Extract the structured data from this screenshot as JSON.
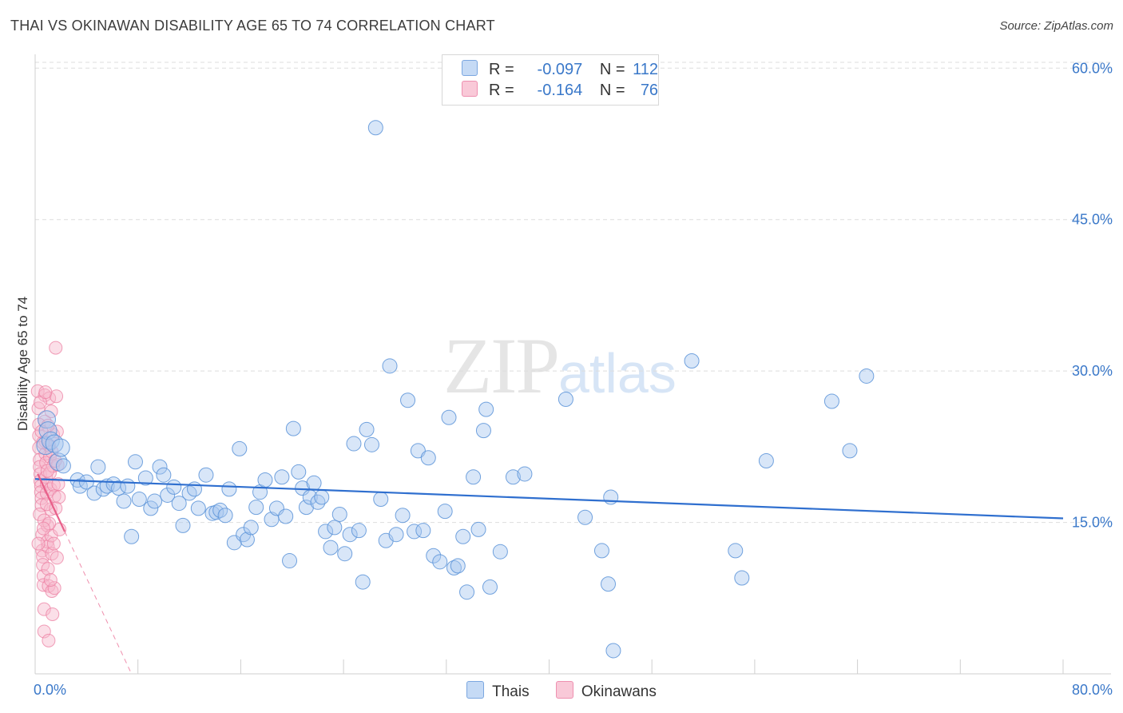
{
  "title": "THAI VS OKINAWAN DISABILITY AGE 65 TO 74 CORRELATION CHART",
  "source": "Source: ZipAtlas.com",
  "watermark": {
    "zip": "ZIP",
    "atlas": "atlas"
  },
  "legend": {
    "thais": {
      "r_label": "R =",
      "r_value": "-0.097",
      "n_label": "N =",
      "n_value": "112"
    },
    "okinawans": {
      "r_label": "R =",
      "r_value": "-0.164",
      "n_label": "N =",
      "n_value": "76"
    }
  },
  "bottom_legend": {
    "thais": "Thais",
    "okinawans": "Okinawans"
  },
  "colors": {
    "thais_fill": "#a9c8f0",
    "thais_stroke": "#5b93d8",
    "thais_line": "#2f6fcf",
    "okinawans_fill": "#f7b7cc",
    "okinawans_stroke": "#ec7fa2",
    "okinawans_line": "#e8608a",
    "tick": "#3a78c9",
    "grid": "#dddddd"
  },
  "chart_data": {
    "type": "scatter",
    "title": "THAI VS OKINAWAN DISABILITY AGE 65 TO 74 CORRELATION CHART",
    "xlabel": "",
    "ylabel": "Disability Age 65 to 74",
    "xlim": [
      0,
      80
    ],
    "ylim": [
      0,
      62
    ],
    "x_tick_labels": [
      "0.0%",
      "80.0%"
    ],
    "y_ticks": [
      15,
      30,
      45,
      60
    ],
    "y_tick_labels": [
      "15.0%",
      "30.0%",
      "45.0%",
      "60.0%"
    ],
    "grid": true,
    "series": [
      {
        "name": "Thais",
        "trendline": {
          "x": [
            0,
            80
          ],
          "y": [
            19.3,
            15.4
          ]
        },
        "points": [
          [
            0.8,
            22.6
          ],
          [
            0.9,
            25.2
          ],
          [
            1.0,
            24.1
          ],
          [
            1.2,
            23.1
          ],
          [
            1.5,
            22.8
          ],
          [
            1.8,
            21.0
          ],
          [
            2.0,
            22.4
          ],
          [
            2.2,
            20.6
          ],
          [
            3.3,
            19.2
          ],
          [
            3.5,
            18.6
          ],
          [
            4.0,
            19.0
          ],
          [
            4.6,
            17.9
          ],
          [
            4.9,
            20.5
          ],
          [
            5.3,
            18.3
          ],
          [
            5.6,
            18.6
          ],
          [
            6.1,
            18.8
          ],
          [
            6.5,
            18.4
          ],
          [
            6.9,
            17.1
          ],
          [
            7.2,
            18.6
          ],
          [
            7.5,
            13.6
          ],
          [
            7.8,
            21.0
          ],
          [
            8.1,
            17.3
          ],
          [
            8.6,
            19.4
          ],
          [
            9.0,
            16.4
          ],
          [
            9.3,
            17.1
          ],
          [
            9.7,
            20.5
          ],
          [
            10.0,
            19.7
          ],
          [
            10.3,
            17.7
          ],
          [
            10.8,
            18.5
          ],
          [
            11.2,
            16.9
          ],
          [
            11.5,
            14.7
          ],
          [
            12.0,
            17.9
          ],
          [
            12.4,
            18.3
          ],
          [
            12.7,
            16.4
          ],
          [
            13.3,
            19.7
          ],
          [
            13.8,
            15.9
          ],
          [
            14.1,
            16.0
          ],
          [
            14.4,
            16.2
          ],
          [
            14.8,
            15.7
          ],
          [
            15.1,
            18.3
          ],
          [
            15.5,
            13.0
          ],
          [
            15.9,
            22.3
          ],
          [
            16.2,
            13.8
          ],
          [
            16.5,
            13.3
          ],
          [
            16.8,
            14.5
          ],
          [
            17.2,
            16.5
          ],
          [
            17.5,
            18.0
          ],
          [
            17.9,
            19.2
          ],
          [
            18.4,
            15.3
          ],
          [
            18.8,
            16.4
          ],
          [
            19.2,
            19.5
          ],
          [
            19.5,
            15.6
          ],
          [
            19.8,
            11.2
          ],
          [
            20.1,
            24.3
          ],
          [
            20.5,
            20.0
          ],
          [
            20.8,
            18.4
          ],
          [
            21.1,
            16.5
          ],
          [
            21.4,
            17.5
          ],
          [
            21.7,
            18.9
          ],
          [
            22.0,
            17.0
          ],
          [
            22.3,
            17.5
          ],
          [
            22.6,
            14.1
          ],
          [
            23.0,
            12.5
          ],
          [
            23.3,
            14.5
          ],
          [
            23.7,
            15.8
          ],
          [
            24.1,
            11.9
          ],
          [
            24.5,
            13.8
          ],
          [
            24.8,
            22.8
          ],
          [
            25.2,
            14.2
          ],
          [
            25.5,
            9.1
          ],
          [
            25.8,
            24.2
          ],
          [
            26.2,
            22.7
          ],
          [
            26.5,
            54.1
          ],
          [
            26.9,
            17.3
          ],
          [
            27.3,
            13.2
          ],
          [
            27.6,
            30.5
          ],
          [
            28.1,
            13.8
          ],
          [
            28.6,
            15.7
          ],
          [
            29.0,
            27.1
          ],
          [
            29.5,
            14.1
          ],
          [
            29.8,
            22.1
          ],
          [
            30.2,
            14.2
          ],
          [
            30.6,
            21.4
          ],
          [
            31.0,
            11.7
          ],
          [
            31.5,
            11.1
          ],
          [
            31.9,
            16.1
          ],
          [
            32.2,
            25.4
          ],
          [
            32.6,
            10.5
          ],
          [
            32.9,
            10.7
          ],
          [
            33.3,
            13.6
          ],
          [
            33.6,
            8.1
          ],
          [
            34.1,
            19.5
          ],
          [
            34.5,
            14.3
          ],
          [
            34.9,
            24.1
          ],
          [
            35.1,
            26.2
          ],
          [
            35.4,
            8.6
          ],
          [
            36.2,
            12.1
          ],
          [
            37.2,
            19.5
          ],
          [
            38.1,
            19.8
          ],
          [
            41.3,
            27.2
          ],
          [
            42.8,
            15.5
          ],
          [
            44.1,
            12.2
          ],
          [
            44.6,
            8.9
          ],
          [
            44.8,
            17.5
          ],
          [
            45.0,
            2.3
          ],
          [
            51.1,
            31.0
          ],
          [
            54.5,
            12.2
          ],
          [
            55.0,
            9.5
          ],
          [
            56.9,
            21.1
          ],
          [
            62.0,
            27.0
          ],
          [
            63.4,
            22.1
          ],
          [
            64.7,
            29.5
          ]
        ]
      },
      {
        "name": "Okinawans",
        "trendline": {
          "x": [
            0.2,
            2.3
          ],
          "y": [
            19.8,
            14.1
          ],
          "dashed_extension": {
            "x": [
              2.3,
              7.5
            ],
            "y": [
              14.1,
              0
            ]
          }
        },
        "points": [
          [
            0.2,
            28.0
          ],
          [
            0.25,
            26.3
          ],
          [
            0.3,
            23.6
          ],
          [
            0.3,
            22.4
          ],
          [
            0.35,
            21.2
          ],
          [
            0.35,
            20.5
          ],
          [
            0.4,
            19.8
          ],
          [
            0.4,
            19.1
          ],
          [
            0.45,
            18.6
          ],
          [
            0.45,
            18.0
          ],
          [
            0.5,
            17.4
          ],
          [
            0.5,
            16.7
          ],
          [
            0.55,
            13.8
          ],
          [
            0.55,
            12.2
          ],
          [
            0.6,
            11.6
          ],
          [
            0.6,
            10.8
          ],
          [
            0.65,
            9.7
          ],
          [
            0.65,
            8.8
          ],
          [
            0.7,
            6.4
          ],
          [
            0.7,
            4.2
          ],
          [
            0.75,
            27.6
          ],
          [
            0.75,
            25.0
          ],
          [
            0.8,
            23.0
          ],
          [
            0.8,
            21.8
          ],
          [
            0.85,
            20.9
          ],
          [
            0.85,
            19.5
          ],
          [
            0.9,
            18.8
          ],
          [
            0.9,
            17.9
          ],
          [
            0.95,
            14.7
          ],
          [
            0.95,
            13.1
          ],
          [
            1.0,
            12.6
          ],
          [
            1.0,
            10.4
          ],
          [
            1.05,
            8.7
          ],
          [
            1.05,
            3.3
          ],
          [
            1.1,
            27.3
          ],
          [
            1.1,
            22.6
          ],
          [
            1.15,
            21.5
          ],
          [
            1.15,
            19.9
          ],
          [
            1.2,
            18.3
          ],
          [
            1.2,
            16.3
          ],
          [
            1.25,
            13.7
          ],
          [
            1.3,
            11.9
          ],
          [
            1.3,
            8.2
          ],
          [
            1.35,
            5.9
          ],
          [
            1.4,
            23.7
          ],
          [
            1.4,
            20.6
          ],
          [
            1.45,
            18.7
          ],
          [
            1.5,
            17.6
          ],
          [
            1.5,
            8.5
          ],
          [
            1.6,
            32.3
          ],
          [
            1.65,
            27.5
          ],
          [
            1.7,
            24.0
          ],
          [
            1.75,
            20.7
          ],
          [
            1.8,
            18.8
          ],
          [
            1.85,
            17.5
          ],
          [
            1.9,
            14.3
          ],
          [
            0.3,
            24.7
          ],
          [
            0.35,
            15.8
          ],
          [
            0.4,
            26.9
          ],
          [
            0.6,
            22.9
          ],
          [
            0.7,
            15.2
          ],
          [
            0.8,
            27.9
          ],
          [
            0.9,
            16.8
          ],
          [
            1.0,
            24.6
          ],
          [
            1.1,
            14.9
          ],
          [
            1.2,
            9.3
          ],
          [
            1.3,
            22.0
          ],
          [
            1.45,
            12.9
          ],
          [
            1.55,
            21.1
          ],
          [
            1.7,
            11.5
          ],
          [
            0.25,
            12.9
          ],
          [
            0.5,
            24.0
          ],
          [
            0.65,
            14.4
          ],
          [
            0.95,
            20.1
          ],
          [
            1.25,
            26.0
          ],
          [
            1.6,
            16.4
          ]
        ]
      }
    ]
  }
}
